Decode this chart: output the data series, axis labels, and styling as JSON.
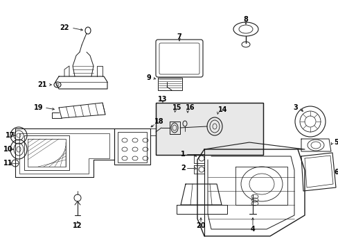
{
  "background_color": "#ffffff",
  "line_color": "#1a1a1a",
  "text_color": "#000000",
  "figsize": [
    4.89,
    3.6
  ],
  "dpi": 100,
  "font_size": 7.0
}
